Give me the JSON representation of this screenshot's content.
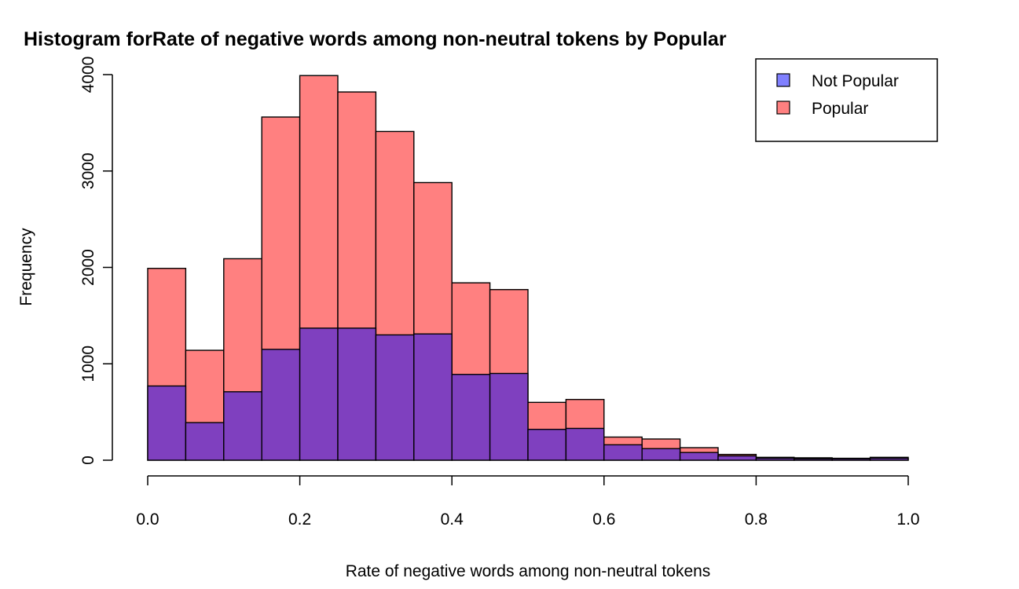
{
  "chart_data": {
    "type": "bar",
    "title": "Histogram forRate of negative words among non-neutral tokens by Popular",
    "xlabel": "Rate of negative words among non-neutral tokens",
    "ylabel": "Frequency",
    "xlim": [
      0,
      1
    ],
    "ylim": [
      0,
      4000
    ],
    "x_ticks": [
      "0.0",
      "0.2",
      "0.4",
      "0.6",
      "0.8",
      "1.0"
    ],
    "y_ticks": [
      "0",
      "1000",
      "2000",
      "3000",
      "4000"
    ],
    "bin_edges": [
      0.0,
      0.05,
      0.1,
      0.15,
      0.2,
      0.25,
      0.3,
      0.35,
      0.4,
      0.45,
      0.5,
      0.55,
      0.6,
      0.65,
      0.7,
      0.75,
      0.8,
      0.85,
      0.9,
      0.95,
      1.0
    ],
    "series": [
      {
        "name": "Popular",
        "color": "#ff8080",
        "values": [
          1990,
          1140,
          2090,
          3560,
          3990,
          3820,
          3410,
          2880,
          1840,
          1770,
          600,
          630,
          240,
          220,
          130,
          60,
          30,
          25,
          20,
          30
        ]
      },
      {
        "name": "Not Popular",
        "color": "#7f40bf",
        "values": [
          770,
          390,
          710,
          1150,
          1370,
          1370,
          1300,
          1310,
          890,
          900,
          320,
          330,
          160,
          120,
          80,
          45,
          20,
          15,
          15,
          20
        ]
      }
    ],
    "legend": {
      "position": "top-right",
      "entries": [
        {
          "label": "Not Popular",
          "swatch": "#8080ff"
        },
        {
          "label": "Popular",
          "swatch": "#ff8080"
        }
      ]
    },
    "grid": false
  }
}
